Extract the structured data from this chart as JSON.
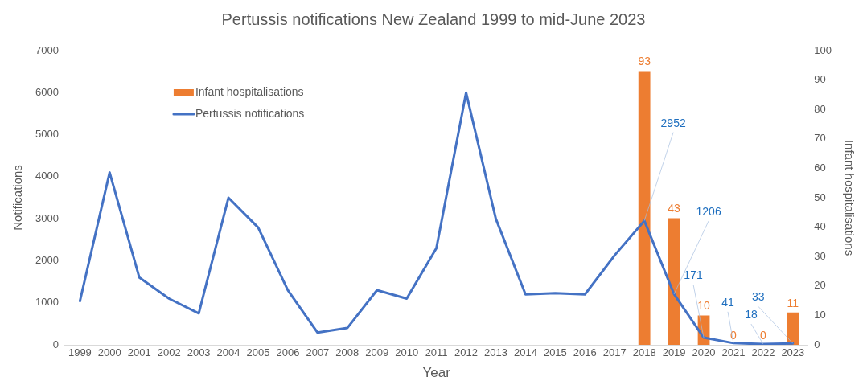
{
  "chart_data": {
    "type": "bar",
    "title": "Pertussis notifications New Zealand 1999 to mid-June 2023",
    "xlabel": "Year",
    "ylabel": "Notifications",
    "y2label": "Infant hospitalisations",
    "categories": [
      "1999",
      "2000",
      "2001",
      "2002",
      "2003",
      "2004",
      "2005",
      "2006",
      "2007",
      "2008",
      "2009",
      "2010",
      "2011",
      "2012",
      "2013",
      "2014",
      "2015",
      "2016",
      "2017",
      "2018",
      "2019",
      "2020",
      "2021",
      "2022",
      "2023"
    ],
    "series": [
      {
        "name": "Infant hospitalisations",
        "axis": "y2",
        "color": "#ed7d31",
        "values": [
          null,
          null,
          null,
          null,
          null,
          null,
          null,
          null,
          null,
          null,
          null,
          null,
          null,
          null,
          null,
          null,
          null,
          null,
          null,
          93,
          43,
          10,
          0,
          0,
          11
        ],
        "value_labels": [
          null,
          null,
          null,
          null,
          null,
          null,
          null,
          null,
          null,
          null,
          null,
          null,
          null,
          null,
          null,
          null,
          null,
          null,
          null,
          "93",
          "43",
          "10",
          "0",
          "0",
          "11"
        ]
      },
      {
        "name": "Pertussis notifications",
        "type": "line",
        "color": "#4472c4",
        "values": [
          1040,
          4100,
          1600,
          1100,
          750,
          3500,
          2790,
          1300,
          290,
          400,
          1300,
          1100,
          2300,
          6000,
          3000,
          1200,
          1230,
          1200,
          2130,
          2952,
          1206,
          171,
          41,
          18,
          33
        ],
        "value_labels": [
          null,
          null,
          null,
          null,
          null,
          null,
          null,
          null,
          null,
          null,
          null,
          null,
          null,
          null,
          null,
          null,
          null,
          null,
          null,
          "2952",
          "1206",
          "171",
          "41",
          "18",
          "33"
        ]
      }
    ],
    "ylim": [
      0,
      7000
    ],
    "yticks": [
      0,
      1000,
      2000,
      3000,
      4000,
      5000,
      6000,
      7000
    ],
    "y2lim": [
      0,
      100
    ],
    "y2ticks": [
      0,
      10,
      20,
      30,
      40,
      50,
      60,
      70,
      80,
      90,
      100
    ],
    "grid": false,
    "legend": "top left",
    "marker": "none",
    "line_style": "solid"
  }
}
